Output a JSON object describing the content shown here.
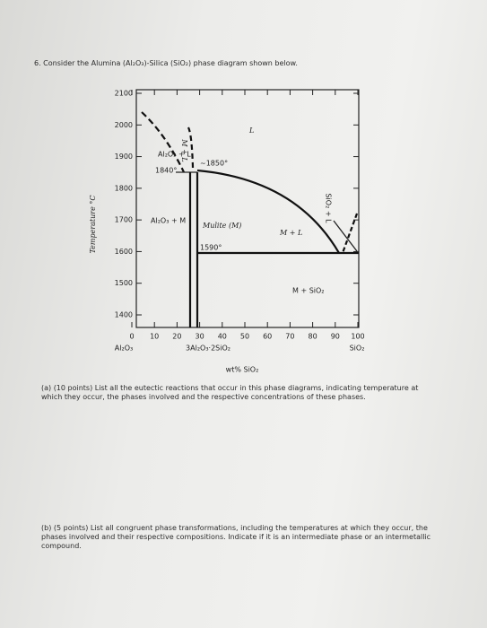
{
  "question": {
    "intro": "6. Consider the Alumina (Al₂O₃)-Silica (SiO₂) phase diagram shown below.",
    "part_a": "(a) (10 points) List all the eutectic reactions that occur in this phase diagrams, indicating temperature at which they occur, the phases involved and the respective concentrations of these phases.",
    "part_b": "(b) (5 points) List all congruent phase transformations, including the temperatures at which they occur, the phases involved and their respective compositions. Indicate if it is an intermediate phase or an intermetallic compound."
  },
  "diagram": {
    "y_label": "Temperature °C",
    "x_label": "wt% SiO₂",
    "yticks": [
      1400,
      1500,
      1600,
      1700,
      1800,
      1900,
      2000,
      2100
    ],
    "xticks": [
      0,
      10,
      20,
      30,
      40,
      50,
      60,
      70,
      80,
      90,
      100
    ],
    "x_left_label": "Al₂O₃",
    "x_mid_label": "3Al₂O₃·2SiO₂",
    "x_right_label": "SiO₂",
    "regions": {
      "liquid": "L",
      "m_plus_l_top": "M + L",
      "alumina_liquid": "Al₂O₃ + L",
      "eutectic_1": "1840°",
      "melting": "~1850°",
      "alumina_mullite": "Al₂O₃ + M",
      "mullite": "Mulite (M)",
      "m_plus_l": "M + L",
      "eutectic_2": "1590°",
      "silica_liquid": "SiO₂ + L",
      "mullite_silica": "M + SiO₂"
    }
  }
}
